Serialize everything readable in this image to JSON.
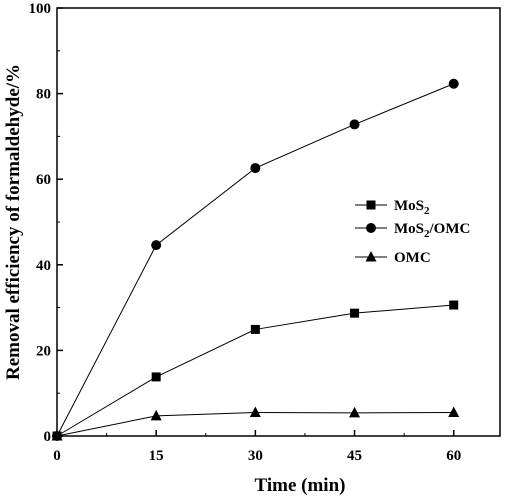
{
  "chart_data": {
    "type": "line",
    "title": "",
    "xlabel": "Time (min)",
    "ylabel": "Removal efficiency of formaldehyde/%",
    "x": [
      0,
      15,
      30,
      45,
      60
    ],
    "xlim": [
      0,
      67
    ],
    "ylim": [
      0,
      100
    ],
    "xticks": [
      0,
      15,
      30,
      45,
      60
    ],
    "yticks": [
      0,
      20,
      40,
      60,
      80,
      100
    ],
    "grid": false,
    "legend_position": "right",
    "series": [
      {
        "name": "MoS2",
        "name_base": "MoS",
        "name_sub": "2",
        "name_rest": "",
        "marker": "square",
        "values": [
          0,
          13.8,
          24.9,
          28.7,
          30.6
        ]
      },
      {
        "name": "MoS2/OMC",
        "name_base": "MoS",
        "name_sub": "2",
        "name_rest": "/OMC",
        "marker": "circle",
        "values": [
          0,
          44.6,
          62.6,
          72.8,
          82.3
        ]
      },
      {
        "name": "OMC",
        "name_base": "OMC",
        "name_sub": "",
        "name_rest": "",
        "marker": "triangle",
        "values": [
          0,
          4.7,
          5.5,
          5.4,
          5.5
        ]
      }
    ],
    "colors": {
      "line": "#000000",
      "marker": "#000000"
    }
  }
}
